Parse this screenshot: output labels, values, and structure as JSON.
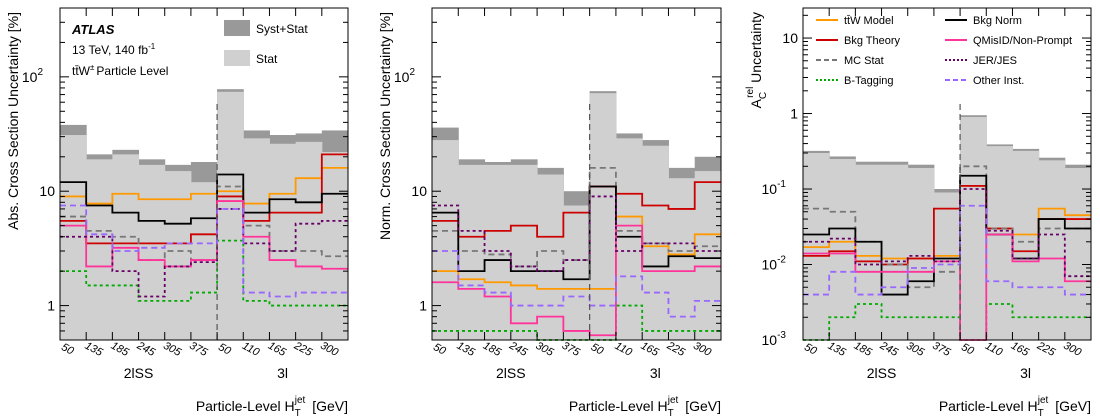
{
  "figure": {
    "panels_meta": {
      "atlas": "ATLAS",
      "energy": "13 TeV, 140 fb",
      "energy_sup": "-1",
      "particle_level": "tt̄W",
      "particle_level_sup": "±",
      "particle_level_tail": "Particle Level",
      "legend_syst": "Syst+Stat",
      "legend_stat": "Stat",
      "region_2lss": "2lSS",
      "region_3l": "3l"
    },
    "xlabel_main": "Particle-Level H",
    "xlabel_sub": "T",
    "xlabel_sup": "jet",
    "xlabel_unit": "[GeV]",
    "ticks_2lss": [
      "50",
      "135",
      "185",
      "245",
      "305",
      "375"
    ],
    "ticks_3l": [
      "50",
      "110",
      "165",
      "225",
      "300"
    ]
  },
  "colors": {
    "syst": "#999999",
    "stat": "#d0d0d0",
    "model": "#ff9900",
    "theory": "#cc0000",
    "mcstat": "#777777",
    "btag": "#00aa00",
    "bkgnorm": "#000000",
    "qmis": "#ff3399",
    "jer": "#660066",
    "other": "#9966ff"
  },
  "chart_data": [
    {
      "type": "area",
      "ylabel": "Abs. Cross Section Uncertainty [%]",
      "scale": "log",
      "ylim": [
        0.5,
        400
      ],
      "yticks": [
        {
          "v": 1,
          "label": "1"
        },
        {
          "v": 10,
          "label": "10"
        },
        {
          "v": 100,
          "label": "10",
          "sup": "2"
        }
      ],
      "bins": 11,
      "syst_stat": [
        38,
        21,
        23,
        19,
        17,
        18,
        78,
        34,
        31,
        32,
        34
      ],
      "stat": [
        31,
        19,
        21,
        17,
        15,
        12,
        74,
        29,
        26,
        27,
        22
      ],
      "lines": [
        {
          "key": "model",
          "values": [
            9.0,
            7.8,
            9.5,
            8.5,
            8.5,
            9.5,
            10.0,
            7.8,
            9.5,
            13.0,
            16.0
          ]
        },
        {
          "key": "theory",
          "values": [
            5.5,
            3.5,
            3.5,
            3.5,
            3.5,
            4.2,
            9.0,
            5.5,
            6.5,
            6.5,
            21.0
          ]
        },
        {
          "key": "mcstat",
          "values": [
            6.0,
            4.5,
            4.0,
            2.5,
            3.0,
            2.5,
            11.0,
            5.0,
            3.0,
            3.0,
            2.7
          ]
        },
        {
          "key": "btag",
          "values": [
            2.0,
            1.5,
            1.5,
            1.1,
            1.1,
            1.3,
            3.7,
            1.1,
            1.0,
            1.0,
            1.0
          ]
        },
        {
          "key": "bkgnorm",
          "values": [
            12.0,
            7.5,
            6.5,
            5.5,
            5.2,
            5.8,
            14.0,
            6.5,
            8.5,
            8.0,
            9.5
          ]
        },
        {
          "key": "qmis",
          "values": [
            5.0,
            2.2,
            3.2,
            2.5,
            2.2,
            2.5,
            8.2,
            4.0,
            2.5,
            2.2,
            2.1
          ]
        },
        {
          "key": "jer",
          "values": [
            4.0,
            4.0,
            2.0,
            1.2,
            2.2,
            2.4,
            7.0,
            3.5,
            3.0,
            5.2,
            5.5
          ]
        },
        {
          "key": "other",
          "values": [
            7.5,
            4.2,
            3.0,
            3.2,
            3.5,
            3.5,
            7.0,
            1.3,
            1.2,
            1.3,
            1.3
          ]
        }
      ]
    },
    {
      "type": "area",
      "ylabel": "Norm. Cross Section Uncertainty [%]",
      "scale": "log",
      "ylim": [
        0.5,
        400
      ],
      "yticks": [
        {
          "v": 1,
          "label": "1"
        },
        {
          "v": 10,
          "label": "10"
        },
        {
          "v": 100,
          "label": "10",
          "sup": "2"
        }
      ],
      "bins": 11,
      "syst_stat": [
        36,
        19,
        18,
        19,
        16,
        10,
        75,
        32,
        28,
        16,
        20
      ],
      "stat": [
        28,
        17,
        17,
        17,
        14,
        7.5,
        72,
        29,
        25,
        13,
        15
      ],
      "lines": [
        {
          "key": "model",
          "values": [
            2.0,
            1.7,
            1.6,
            1.5,
            1.4,
            1.4,
            1.4,
            6.0,
            3.3,
            2.8,
            4.2
          ]
        },
        {
          "key": "theory",
          "values": [
            5.5,
            4.0,
            4.5,
            5.0,
            4.0,
            6.5,
            11.0,
            9.5,
            7.5,
            7.0,
            12.0
          ]
        },
        {
          "key": "mcstat",
          "values": [
            4.5,
            3.0,
            2.8,
            2.2,
            3.0,
            2.5,
            16.0,
            4.5,
            3.5,
            3.0,
            3.3
          ]
        },
        {
          "key": "btag",
          "values": [
            0.6,
            0.6,
            0.6,
            0.6,
            0.5,
            0.5,
            0.5,
            1.0,
            0.6,
            0.6,
            0.6
          ]
        },
        {
          "key": "bkgnorm",
          "values": [
            6.5,
            2.0,
            2.5,
            2.0,
            2.0,
            1.7,
            11.0,
            4.0,
            2.2,
            2.7,
            2.6
          ]
        },
        {
          "key": "qmis",
          "values": [
            1.6,
            1.4,
            1.2,
            0.7,
            0.8,
            0.6,
            0.55,
            5.0,
            2.0,
            2.0,
            2.2
          ]
        },
        {
          "key": "jer",
          "values": [
            7.5,
            4.5,
            3.0,
            2.2,
            2.0,
            2.5,
            9.0,
            3.0,
            3.5,
            3.5,
            3.0
          ]
        },
        {
          "key": "other",
          "values": [
            3.0,
            1.5,
            1.3,
            1.0,
            1.0,
            1.2,
            1.0,
            1.8,
            1.3,
            0.8,
            1.1
          ]
        }
      ]
    },
    {
      "type": "area",
      "ylabel": "A",
      "ylabel_sub": "C",
      "ylabel_sup": "rel",
      "ylabel_tail": " Uncertainty",
      "scale": "log",
      "ylim": [
        0.001,
        25
      ],
      "yticks": [
        {
          "v": 0.001,
          "label": "10",
          "sup": "-3"
        },
        {
          "v": 0.01,
          "label": "10",
          "sup": "-2"
        },
        {
          "v": 0.1,
          "label": "10",
          "sup": "-1"
        },
        {
          "v": 1,
          "label": "1"
        },
        {
          "v": 10,
          "label": "10"
        }
      ],
      "bins": 11,
      "syst_stat": [
        0.32,
        0.27,
        0.23,
        0.23,
        0.21,
        0.1,
        0.95,
        0.39,
        0.34,
        0.26,
        0.21
      ],
      "stat": [
        0.3,
        0.25,
        0.21,
        0.21,
        0.19,
        0.09,
        0.9,
        0.37,
        0.32,
        0.24,
        0.19
      ],
      "lines": [
        {
          "key": "model",
          "values": [
            0.017,
            0.02,
            0.013,
            0.012,
            0.012,
            0.013,
            0.11,
            0.03,
            0.025,
            0.055,
            0.045
          ]
        },
        {
          "key": "theory",
          "values": [
            0.013,
            0.015,
            0.011,
            0.01,
            0.012,
            0.055,
            0.11,
            0.03,
            0.015,
            0.04,
            0.04
          ]
        },
        {
          "key": "mcstat",
          "values": [
            0.055,
            0.05,
            0.02,
            0.01,
            0.005,
            0.008,
            0.2,
            0.03,
            0.02,
            0.03,
            0.03
          ]
        },
        {
          "key": "btag",
          "values": [
            0.001,
            0.002,
            0.003,
            0.002,
            0.002,
            0.002,
            0.001,
            0.003,
            0.002,
            0.002,
            0.002
          ]
        },
        {
          "key": "bkgnorm",
          "values": [
            0.025,
            0.03,
            0.02,
            0.004,
            0.006,
            0.012,
            0.15,
            0.025,
            0.012,
            0.04,
            0.03
          ]
        },
        {
          "key": "qmis",
          "values": [
            0.014,
            0.014,
            0.008,
            0.008,
            0.008,
            0.011,
            0.001,
            0.025,
            0.011,
            0.012,
            0.006
          ]
        },
        {
          "key": "jer",
          "values": [
            0.02,
            0.022,
            0.01,
            0.011,
            0.013,
            0.011,
            0.1,
            0.028,
            0.012,
            0.025,
            0.007
          ]
        },
        {
          "key": "other",
          "values": [
            0.004,
            0.008,
            0.004,
            0.005,
            0.009,
            0.01,
            0.06,
            0.006,
            0.005,
            0.005,
            0.004
          ]
        }
      ],
      "legend": [
        {
          "key": "model",
          "label": "tt̄W Model",
          "dash": "solid"
        },
        {
          "key": "bkgnorm",
          "label": "Bkg Norm",
          "dash": "solid"
        },
        {
          "key": "theory",
          "label": "Bkg Theory",
          "dash": "solid"
        },
        {
          "key": "qmis",
          "label": "QMisID/Non-Prompt",
          "dash": "solid"
        },
        {
          "key": "mcstat",
          "label": "MC Stat",
          "dash": "dash"
        },
        {
          "key": "jer",
          "label": "JER/JES",
          "dash": "dot"
        },
        {
          "key": "btag",
          "label": "B-Tagging",
          "dash": "dot"
        },
        {
          "key": "other",
          "label": "Other Inst.",
          "dash": "dash"
        }
      ]
    }
  ]
}
